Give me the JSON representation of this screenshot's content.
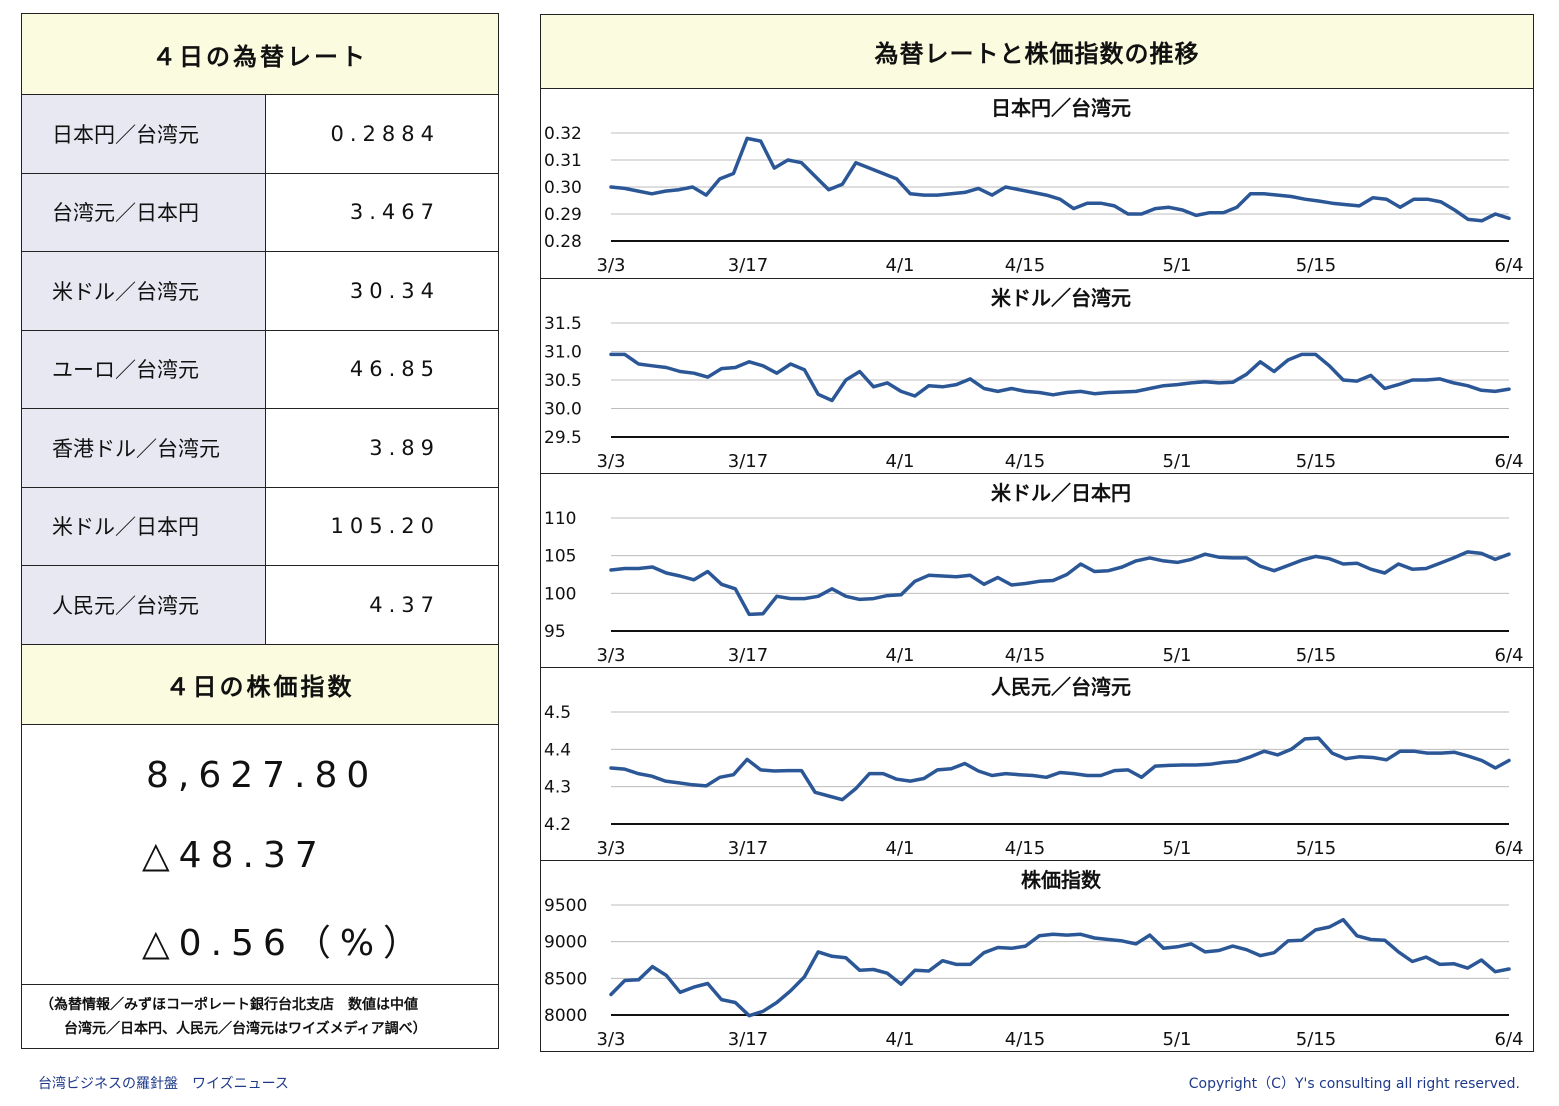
{
  "rates": {
    "title": "４日の為替レート",
    "rows": [
      {
        "name": "日本円／台湾元",
        "value": "0.2884"
      },
      {
        "name": "台湾元／日本円",
        "value": "3.467"
      },
      {
        "name": "米ドル／台湾元",
        "value": "30.34"
      },
      {
        "name": "ユーロ／台湾元",
        "value": "46.85"
      },
      {
        "name": "香港ドル／台湾元",
        "value": "3.89"
      },
      {
        "name": "米ドル／日本円",
        "value": "105.20"
      },
      {
        "name": "人民元／台湾元",
        "value": "4.37"
      }
    ]
  },
  "stock": {
    "title": "４日の株価指数",
    "index": "8,627.80",
    "change": "△48.37",
    "change_pct": "△0.56（%）"
  },
  "note": {
    "line1": "（為替情報／みずほコーポレート銀行台北支店　数値は中値",
    "line2": "台湾元／日本円、人民元／台湾元はワイズメディア調べ）"
  },
  "charts_title": "為替レートと株価指数の推移",
  "footer": {
    "left": "台湾ビジネスの羅針盤　ワイズニュース",
    "right": "Copyright（C）Y's consulting all right reserved."
  },
  "colors": {
    "line": "#2b5797",
    "header_bg": "#fbfbdf",
    "label_bg": "#e8e8f2"
  },
  "chart_data": [
    {
      "type": "line",
      "title": "日本円／台湾元",
      "x_ticks": [
        "3/3",
        "3/17",
        "4/1",
        "4/15",
        "5/1",
        "5/15",
        "6/4"
      ],
      "y_ticks": [
        "0.32",
        "0.31",
        "0.30",
        "0.29",
        "0.28"
      ],
      "ylim": [
        0.28,
        0.32
      ],
      "values": [
        0.3,
        0.2995,
        0.2985,
        0.2975,
        0.2985,
        0.299,
        0.3,
        0.297,
        0.303,
        0.305,
        0.318,
        0.317,
        0.307,
        0.31,
        0.309,
        0.304,
        0.299,
        0.301,
        0.309,
        0.307,
        0.305,
        0.303,
        0.2975,
        0.297,
        0.297,
        0.2975,
        0.298,
        0.2995,
        0.297,
        0.3,
        0.299,
        0.298,
        0.297,
        0.2955,
        0.292,
        0.294,
        0.294,
        0.293,
        0.29,
        0.29,
        0.292,
        0.2925,
        0.2915,
        0.2895,
        0.2905,
        0.2905,
        0.2925,
        0.2975,
        0.2975,
        0.297,
        0.2965,
        0.2955,
        0.2948,
        0.294,
        0.2935,
        0.293,
        0.296,
        0.2955,
        0.2925,
        0.2955,
        0.2955,
        0.2945,
        0.2915,
        0.288,
        0.2875,
        0.29,
        0.2884
      ]
    },
    {
      "type": "line",
      "title": "米ドル／台湾元",
      "x_ticks": [
        "3/3",
        "3/17",
        "4/1",
        "4/15",
        "5/1",
        "5/15",
        "6/4"
      ],
      "y_ticks": [
        "31.5",
        "31.0",
        "30.5",
        "30.0",
        "29.5"
      ],
      "ylim": [
        29.5,
        31.5
      ],
      "values": [
        30.95,
        30.95,
        30.78,
        30.75,
        30.72,
        30.65,
        30.62,
        30.55,
        30.7,
        30.72,
        30.82,
        30.75,
        30.62,
        30.78,
        30.68,
        30.25,
        30.14,
        30.5,
        30.65,
        30.38,
        30.45,
        30.3,
        30.22,
        30.4,
        30.38,
        30.42,
        30.52,
        30.35,
        30.3,
        30.35,
        30.3,
        30.28,
        30.24,
        30.28,
        30.3,
        30.26,
        30.28,
        30.29,
        30.3,
        30.35,
        30.4,
        30.42,
        30.45,
        30.47,
        30.45,
        30.46,
        30.6,
        30.82,
        30.65,
        30.85,
        30.95,
        30.95,
        30.75,
        30.5,
        30.48,
        30.58,
        30.35,
        30.42,
        30.5,
        30.5,
        30.52,
        30.45,
        30.4,
        30.32,
        30.3,
        30.34
      ]
    },
    {
      "type": "line",
      "title": "米ドル／日本円",
      "x_ticks": [
        "3/3",
        "3/17",
        "4/1",
        "4/15",
        "5/1",
        "5/15",
        "6/4"
      ],
      "y_ticks": [
        "110",
        "105",
        "100",
        "95"
      ],
      "ylim": [
        95,
        110
      ],
      "values": [
        103.1,
        103.3,
        103.3,
        103.5,
        102.7,
        102.3,
        101.8,
        102.9,
        101.2,
        100.6,
        97.2,
        97.3,
        99.6,
        99.3,
        99.3,
        99.6,
        100.6,
        99.6,
        99.2,
        99.3,
        99.7,
        99.8,
        101.6,
        102.4,
        102.3,
        102.2,
        102.4,
        101.2,
        102.1,
        101.1,
        101.3,
        101.6,
        101.7,
        102.5,
        103.9,
        102.9,
        103.0,
        103.5,
        104.3,
        104.7,
        104.3,
        104.1,
        104.5,
        105.2,
        104.8,
        104.7,
        104.7,
        103.6,
        103.0,
        103.7,
        104.4,
        104.9,
        104.6,
        103.9,
        104.0,
        103.2,
        102.7,
        103.9,
        103.2,
        103.3,
        104.0,
        104.7,
        105.5,
        105.3,
        104.5,
        105.2
      ]
    },
    {
      "type": "line",
      "title": "人民元／台湾元",
      "x_ticks": [
        "3/3",
        "3/17",
        "4/1",
        "4/15",
        "5/1",
        "5/15",
        "6/4"
      ],
      "y_ticks": [
        "4.5",
        "4.4",
        "4.3",
        "4.2"
      ],
      "ylim": [
        4.2,
        4.5
      ],
      "values": [
        4.35,
        4.347,
        4.335,
        4.328,
        4.315,
        4.31,
        4.305,
        4.302,
        4.325,
        4.332,
        4.373,
        4.345,
        4.342,
        4.343,
        4.343,
        4.285,
        4.275,
        4.265,
        4.295,
        4.335,
        4.335,
        4.32,
        4.315,
        4.322,
        4.345,
        4.348,
        4.362,
        4.342,
        4.33,
        4.335,
        4.332,
        4.33,
        4.325,
        4.338,
        4.335,
        4.33,
        4.33,
        4.343,
        4.345,
        4.325,
        4.355,
        4.357,
        4.358,
        4.358,
        4.36,
        4.365,
        4.368,
        4.38,
        4.395,
        4.385,
        4.4,
        4.428,
        4.43,
        4.39,
        4.375,
        4.38,
        4.378,
        4.372,
        4.395,
        4.395,
        4.39,
        4.39,
        4.392,
        4.382,
        4.37,
        4.35,
        4.37
      ]
    },
    {
      "type": "line",
      "title": "株価指数",
      "x_ticks": [
        "3/3",
        "3/17",
        "4/1",
        "4/15",
        "5/1",
        "5/15",
        "6/4"
      ],
      "y_ticks": [
        "9500",
        "9000",
        "8500",
        "8000"
      ],
      "ylim": [
        8000,
        9500
      ],
      "values": [
        8280,
        8470,
        8480,
        8660,
        8540,
        8310,
        8380,
        8430,
        8210,
        8170,
        7990,
        8050,
        8170,
        8330,
        8520,
        8860,
        8800,
        8780,
        8610,
        8620,
        8570,
        8420,
        8610,
        8600,
        8740,
        8690,
        8690,
        8850,
        8920,
        8910,
        8940,
        9080,
        9100,
        9090,
        9100,
        9050,
        9030,
        9010,
        8970,
        9090,
        8910,
        8930,
        8970,
        8860,
        8880,
        8940,
        8890,
        8810,
        8850,
        9010,
        9020,
        9160,
        9200,
        9300,
        9080,
        9030,
        9020,
        8860,
        8730,
        8790,
        8690,
        8700,
        8640,
        8750,
        8590,
        8627.8
      ]
    }
  ]
}
